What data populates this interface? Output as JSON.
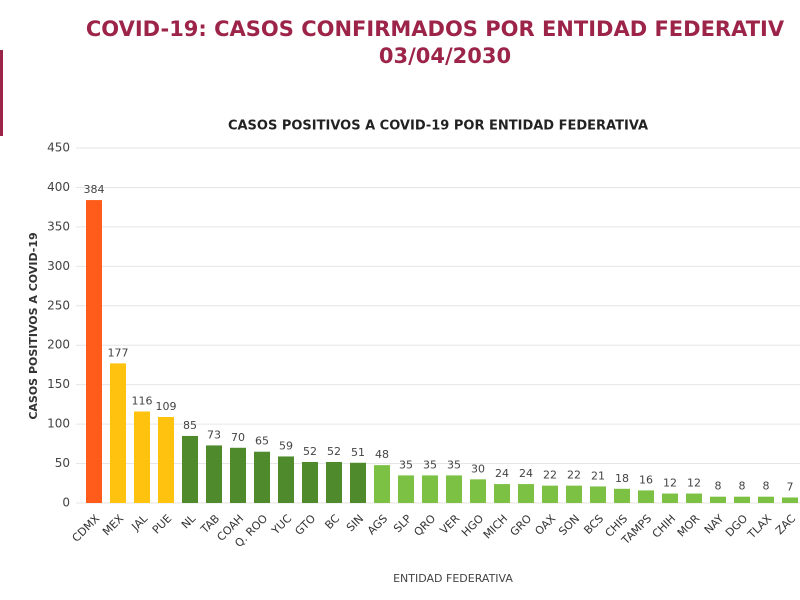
{
  "chart_data": {
    "type": "bar",
    "title": "COVID-19: CASOS CONFIRMADOS POR ENTIDAD FEDERATIV",
    "date": "03/04/2030",
    "subtitle": "CASOS POSITIVOS A COVID-19 POR ENTIDAD FEDERATIVA",
    "y_label": "CASOS POSITIVOS A COVID-19",
    "x_label": "ENTIDAD FEDERATIVA",
    "categories": [
      "CDMX",
      "MEX",
      "JAL",
      "PUE",
      "NL",
      "TAB",
      "COAH",
      "Q. ROO",
      "YUC",
      "GTO",
      "BC",
      "SIN",
      "AGS",
      "SLP",
      "QRO",
      "VER",
      "HGO",
      "MICH",
      "GRO",
      "OAX",
      "SON",
      "BCS",
      "CHIS",
      "TAMPS",
      "CHIH",
      "MOR",
      "NAY",
      "DGO",
      "TLAX",
      "ZAC"
    ],
    "values": [
      384,
      177,
      116,
      109,
      85,
      73,
      70,
      65,
      59,
      52,
      52,
      51,
      48,
      35,
      35,
      35,
      30,
      24,
      24,
      22,
      22,
      21,
      18,
      16,
      12,
      12,
      8,
      8,
      8,
      7
    ],
    "colors": [
      "#ff5b1a",
      "#ffc20e",
      "#ffc20e",
      "#ffc20e",
      "#4f8a2c",
      "#4f8a2c",
      "#4f8a2c",
      "#4f8a2c",
      "#4f8a2c",
      "#4f8a2c",
      "#4f8a2c",
      "#4f8a2c",
      "#7cc143",
      "#7cc143",
      "#7cc143",
      "#7cc143",
      "#7cc143",
      "#7cc143",
      "#7cc143",
      "#7cc143",
      "#7cc143",
      "#7cc143",
      "#7cc143",
      "#7cc143",
      "#7cc143",
      "#7cc143",
      "#7cc143",
      "#7cc143",
      "#7cc143",
      "#7cc143"
    ],
    "ylim": [
      0,
      450
    ],
    "yticks": [
      0,
      50,
      100,
      150,
      200,
      250,
      300,
      350,
      400,
      450
    ],
    "grid": true,
    "show_value_labels": true
  }
}
